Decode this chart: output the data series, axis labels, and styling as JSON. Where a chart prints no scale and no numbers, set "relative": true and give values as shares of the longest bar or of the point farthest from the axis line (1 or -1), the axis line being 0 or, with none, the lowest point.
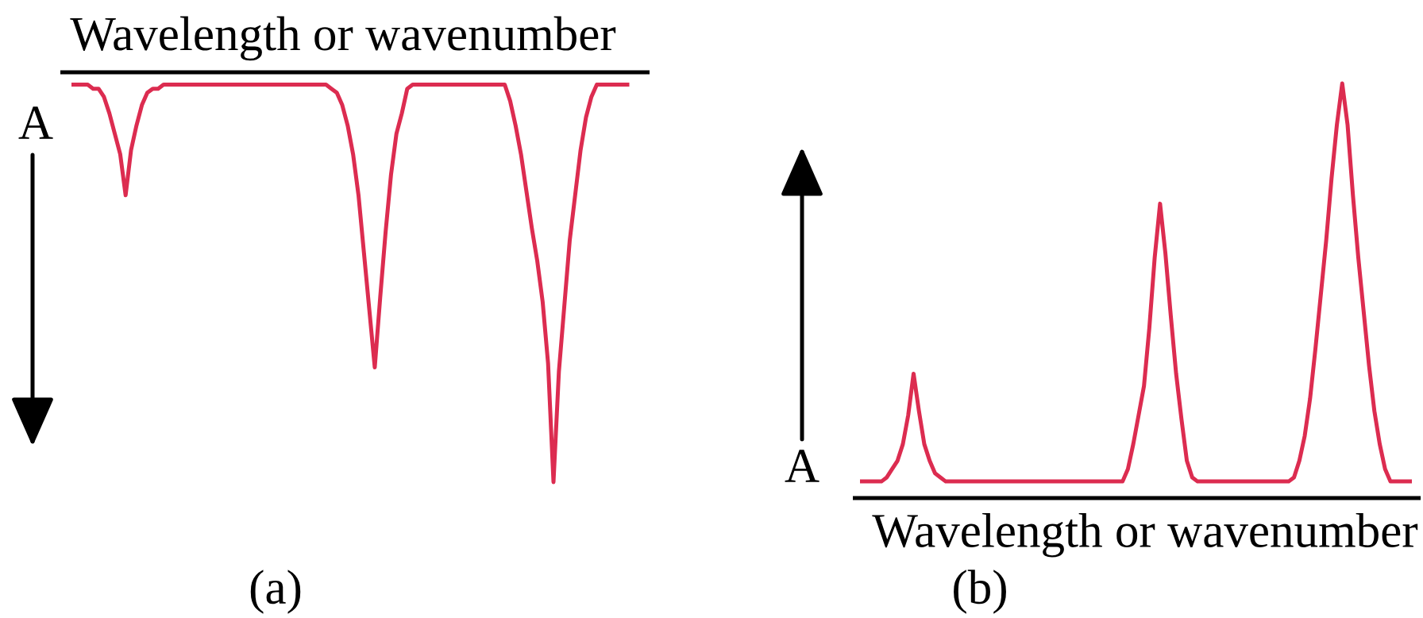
{
  "chart_data": [
    {
      "type": "line",
      "xlabel": "Wavelength or wavenumber",
      "ylabel": "A",
      "annotations": [
        "(a)"
      ],
      "relative": true,
      "tick_labels": false,
      "color": "#dc2c50",
      "categories": [
        null,
        null,
        null,
        null,
        null,
        null,
        null,
        null,
        null,
        null,
        null,
        null,
        null,
        null,
        null,
        null,
        null,
        null,
        null,
        null,
        null,
        null,
        null,
        null,
        null,
        null,
        null,
        null,
        null,
        null,
        null,
        null,
        null,
        null,
        null,
        null,
        null,
        null,
        null,
        null,
        null,
        null,
        null,
        null,
        null,
        null,
        null,
        null,
        null,
        null,
        null,
        null,
        null,
        null,
        null,
        null,
        null,
        null,
        null,
        null,
        null,
        null,
        null,
        null,
        null,
        null,
        null,
        null,
        null,
        null,
        null,
        null,
        null,
        null,
        null,
        null,
        null,
        null,
        null,
        null,
        null,
        null,
        null,
        null,
        null,
        null,
        null,
        null,
        null,
        null,
        null,
        null,
        null,
        null,
        null,
        null,
        null,
        null,
        null,
        null,
        null,
        null,
        null,
        null
      ],
      "values": [
        -0.03,
        -0.03,
        -0.03,
        -0.03,
        -0.04,
        -0.04,
        -0.06,
        -0.1,
        -0.15,
        -0.2,
        -0.3,
        -0.19,
        -0.13,
        -0.08,
        -0.05,
        -0.04,
        -0.04,
        -0.03,
        -0.03,
        -0.03,
        -0.03,
        -0.03,
        -0.03,
        -0.03,
        -0.03,
        -0.03,
        -0.03,
        -0.03,
        -0.03,
        -0.03,
        -0.03,
        -0.03,
        -0.03,
        -0.03,
        -0.03,
        -0.03,
        -0.03,
        -0.03,
        -0.03,
        -0.03,
        -0.03,
        -0.03,
        -0.03,
        -0.03,
        -0.03,
        -0.03,
        -0.03,
        -0.03,
        -0.04,
        -0.05,
        -0.08,
        -0.13,
        -0.2,
        -0.3,
        -0.44,
        -0.58,
        -0.72,
        -0.55,
        -0.39,
        -0.25,
        -0.15,
        -0.1,
        -0.04,
        -0.03,
        -0.03,
        -0.03,
        -0.03,
        -0.03,
        -0.03,
        -0.03,
        -0.03,
        -0.03,
        -0.03,
        -0.03,
        -0.03,
        -0.03,
        -0.03,
        -0.03,
        -0.03,
        -0.03,
        -0.03,
        -0.07,
        -0.13,
        -0.2,
        -0.29,
        -0.38,
        -0.46,
        -0.56,
        -0.71,
        -1,
        -0.73,
        -0.57,
        -0.41,
        -0.3,
        -0.19,
        -0.11,
        -0.06,
        -0.03,
        -0.03,
        -0.03,
        -0.03,
        -0.03,
        -0.03,
        -0.03
      ]
    },
    {
      "type": "line",
      "xlabel": "Wavelength or wavenumber",
      "ylabel": "A",
      "annotations": [
        "(b)"
      ],
      "relative": true,
      "tick_labels": false,
      "color": "#dc2c50",
      "categories": [
        null,
        null,
        null,
        null,
        null,
        null,
        null,
        null,
        null,
        null,
        null,
        null,
        null,
        null,
        null,
        null,
        null,
        null,
        null,
        null,
        null,
        null,
        null,
        null,
        null,
        null,
        null,
        null,
        null,
        null,
        null,
        null,
        null,
        null,
        null,
        null,
        null,
        null,
        null,
        null,
        null,
        null,
        null,
        null,
        null,
        null,
        null,
        null,
        null,
        null,
        null,
        null,
        null,
        null,
        null,
        null,
        null,
        null,
        null,
        null,
        null,
        null,
        null,
        null,
        null,
        null,
        null,
        null,
        null,
        null,
        null,
        null,
        null,
        null,
        null,
        null,
        null,
        null,
        null,
        null,
        null,
        null,
        null,
        null,
        null,
        null,
        null,
        null,
        null,
        null,
        null,
        null,
        null,
        null,
        null,
        null,
        null,
        null,
        null,
        null,
        null,
        null,
        null,
        null
      ],
      "values": [
        0.04,
        0.04,
        0.04,
        0.04,
        0.04,
        0.05,
        0.07,
        0.09,
        0.13,
        0.2,
        0.3,
        0.21,
        0.13,
        0.09,
        0.06,
        0.05,
        0.04,
        0.04,
        0.04,
        0.04,
        0.04,
        0.04,
        0.04,
        0.04,
        0.04,
        0.04,
        0.04,
        0.04,
        0.04,
        0.04,
        0.04,
        0.04,
        0.04,
        0.04,
        0.04,
        0.04,
        0.04,
        0.04,
        0.04,
        0.04,
        0.04,
        0.04,
        0.04,
        0.04,
        0.04,
        0.04,
        0.04,
        0.04,
        0.04,
        0.04,
        0.07,
        0.13,
        0.2,
        0.27,
        0.41,
        0.58,
        0.71,
        0.59,
        0.44,
        0.3,
        0.19,
        0.09,
        0.05,
        0.04,
        0.04,
        0.04,
        0.04,
        0.04,
        0.04,
        0.04,
        0.04,
        0.04,
        0.04,
        0.04,
        0.04,
        0.04,
        0.04,
        0.04,
        0.04,
        0.04,
        0.04,
        0.05,
        0.09,
        0.15,
        0.24,
        0.36,
        0.49,
        0.62,
        0.77,
        0.9,
        1,
        0.9,
        0.73,
        0.58,
        0.45,
        0.32,
        0.21,
        0.13,
        0.07,
        0.04,
        0.04,
        0.04,
        0.04,
        0.04
      ]
    }
  ]
}
